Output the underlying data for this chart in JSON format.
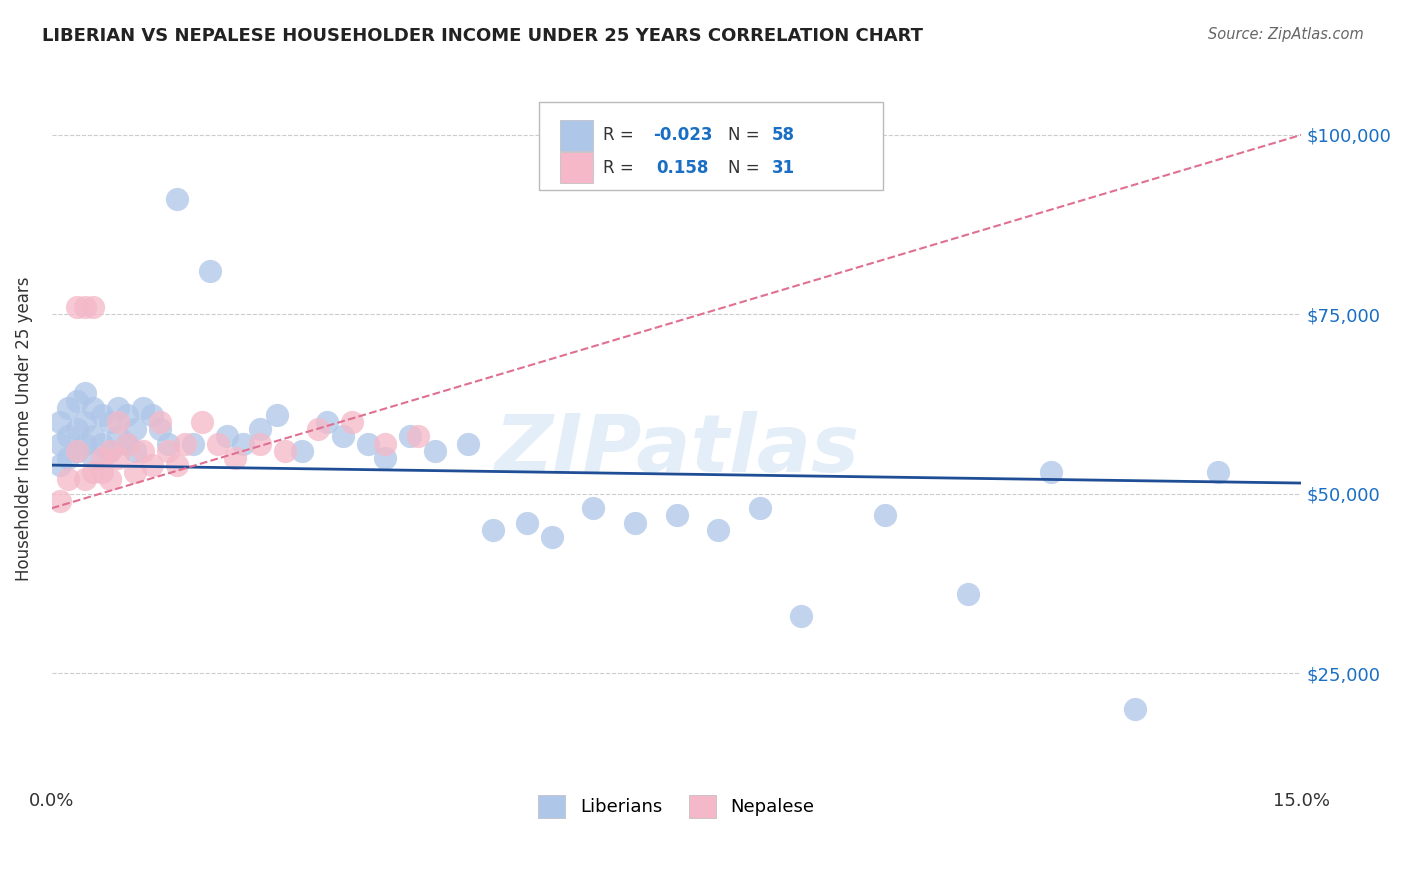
{
  "title": "LIBERIAN VS NEPALESE HOUSEHOLDER INCOME UNDER 25 YEARS CORRELATION CHART",
  "source": "Source: ZipAtlas.com",
  "ylabel": "Householder Income Under 25 years",
  "xlim": [
    0.0,
    0.15
  ],
  "ylim": [
    10000,
    108000
  ],
  "yticks": [
    25000,
    50000,
    75000,
    100000
  ],
  "ytick_labels": [
    "$25,000",
    "$50,000",
    "$75,000",
    "$100,000"
  ],
  "xticks": [
    0.0,
    0.03,
    0.06,
    0.09,
    0.12,
    0.15
  ],
  "xtick_labels": [
    "0.0%",
    "",
    "",
    "",
    "",
    "15.0%"
  ],
  "liberian_R": -0.023,
  "liberian_N": 58,
  "nepalese_R": 0.158,
  "nepalese_N": 31,
  "liberian_color": "#aec6e8",
  "nepalese_color": "#f4b8c8",
  "liberian_line_color": "#1f4e96",
  "nepalese_line_color": "#e07090",
  "watermark": "ZIPatlas",
  "liberian_x": [
    0.001,
    0.001,
    0.001,
    0.002,
    0.002,
    0.002,
    0.003,
    0.003,
    0.003,
    0.004,
    0.004,
    0.004,
    0.005,
    0.005,
    0.005,
    0.006,
    0.006,
    0.007,
    0.007,
    0.008,
    0.008,
    0.009,
    0.009,
    0.01,
    0.01,
    0.011,
    0.012,
    0.013,
    0.014,
    0.015,
    0.017,
    0.019,
    0.021,
    0.023,
    0.025,
    0.027,
    0.03,
    0.033,
    0.035,
    0.038,
    0.04,
    0.043,
    0.046,
    0.05,
    0.053,
    0.057,
    0.06,
    0.065,
    0.07,
    0.075,
    0.08,
    0.085,
    0.09,
    0.1,
    0.11,
    0.12,
    0.13,
    0.14
  ],
  "liberian_y": [
    54000,
    57000,
    60000,
    55000,
    58000,
    62000,
    56000,
    59000,
    63000,
    57000,
    60000,
    64000,
    55000,
    58000,
    62000,
    57000,
    61000,
    56000,
    60000,
    58000,
    62000,
    57000,
    61000,
    56000,
    59000,
    62000,
    61000,
    59000,
    57000,
    91000,
    57000,
    81000,
    58000,
    57000,
    59000,
    61000,
    56000,
    60000,
    58000,
    57000,
    55000,
    58000,
    56000,
    57000,
    45000,
    46000,
    44000,
    48000,
    46000,
    47000,
    45000,
    48000,
    33000,
    47000,
    36000,
    53000,
    20000,
    53000
  ],
  "nepalese_x": [
    0.001,
    0.002,
    0.003,
    0.003,
    0.004,
    0.004,
    0.005,
    0.005,
    0.006,
    0.006,
    0.007,
    0.007,
    0.008,
    0.008,
    0.009,
    0.01,
    0.011,
    0.012,
    0.013,
    0.014,
    0.015,
    0.016,
    0.018,
    0.02,
    0.022,
    0.025,
    0.028,
    0.032,
    0.036,
    0.04,
    0.044
  ],
  "nepalese_y": [
    49000,
    52000,
    56000,
    76000,
    76000,
    52000,
    53000,
    76000,
    53000,
    55000,
    52000,
    56000,
    60000,
    55000,
    57000,
    53000,
    56000,
    54000,
    60000,
    56000,
    54000,
    57000,
    60000,
    57000,
    55000,
    57000,
    56000,
    59000,
    60000,
    57000,
    58000
  ],
  "lib_line_x0": 0.0,
  "lib_line_y0": 54000,
  "lib_line_x1": 0.15,
  "lib_line_y1": 51500,
  "nep_line_x0": 0.0,
  "nep_line_y0": 48000,
  "nep_line_x1": 0.15,
  "nep_line_y1": 100000
}
